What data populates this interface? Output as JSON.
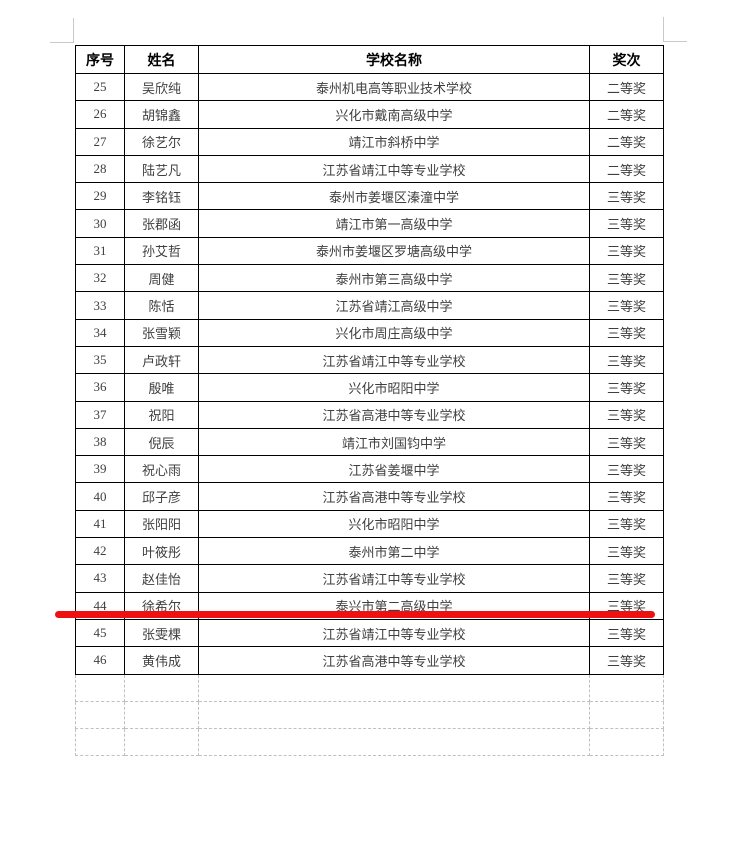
{
  "table": {
    "headers": [
      "序号",
      "姓名",
      "学校名称",
      "奖次"
    ],
    "rows": [
      {
        "no": "25",
        "name": "吴欣纯",
        "school": "泰州机电高等职业技术学校",
        "award": "二等奖"
      },
      {
        "no": "26",
        "name": "胡锦鑫",
        "school": "兴化市戴南高级中学",
        "award": "二等奖"
      },
      {
        "no": "27",
        "name": "徐艺尔",
        "school": "靖江市斜桥中学",
        "award": "二等奖"
      },
      {
        "no": "28",
        "name": "陆艺凡",
        "school": "江苏省靖江中等专业学校",
        "award": "二等奖"
      },
      {
        "no": "29",
        "name": "李铭钰",
        "school": "泰州市姜堰区溱潼中学",
        "award": "三等奖"
      },
      {
        "no": "30",
        "name": "张郡函",
        "school": "靖江市第一高级中学",
        "award": "三等奖"
      },
      {
        "no": "31",
        "name": "孙艾哲",
        "school": "泰州市姜堰区罗塘高级中学",
        "award": "三等奖"
      },
      {
        "no": "32",
        "name": "周健",
        "school": "泰州市第三高级中学",
        "award": "三等奖"
      },
      {
        "no": "33",
        "name": "陈恬",
        "school": "江苏省靖江高级中学",
        "award": "三等奖"
      },
      {
        "no": "34",
        "name": "张雪颖",
        "school": "兴化市周庄高级中学",
        "award": "三等奖"
      },
      {
        "no": "35",
        "name": "卢政轩",
        "school": "江苏省靖江中等专业学校",
        "award": "三等奖"
      },
      {
        "no": "36",
        "name": "殷唯",
        "school": "兴化市昭阳中学",
        "award": "三等奖"
      },
      {
        "no": "37",
        "name": "祝阳",
        "school": "江苏省高港中等专业学校",
        "award": "三等奖"
      },
      {
        "no": "38",
        "name": "倪辰",
        "school": "靖江市刘国钧中学",
        "award": "三等奖"
      },
      {
        "no": "39",
        "name": "祝心雨",
        "school": "江苏省姜堰中学",
        "award": "三等奖"
      },
      {
        "no": "40",
        "name": "邱子彦",
        "school": "江苏省高港中等专业学校",
        "award": "三等奖"
      },
      {
        "no": "41",
        "name": "张阳阳",
        "school": "兴化市昭阳中学",
        "award": "三等奖"
      },
      {
        "no": "42",
        "name": "叶筱彤",
        "school": "泰州市第二中学",
        "award": "三等奖"
      },
      {
        "no": "43",
        "name": "赵佳怡",
        "school": "江苏省靖江中等专业学校",
        "award": "三等奖"
      },
      {
        "no": "44",
        "name": "徐希尔",
        "school": "泰兴市第二高级中学",
        "award": "三等奖"
      },
      {
        "no": "45",
        "name": "张雯棵",
        "school": "江苏省靖江中等专业学校",
        "award": "三等奖"
      },
      {
        "no": "46",
        "name": "黄伟成",
        "school": "江苏省高港中等专业学校",
        "award": "三等奖"
      }
    ],
    "empty_row_count": 3
  },
  "annotation": {
    "type": "red-underline",
    "highlighted_row_no": "44",
    "color": "#ee1111"
  }
}
